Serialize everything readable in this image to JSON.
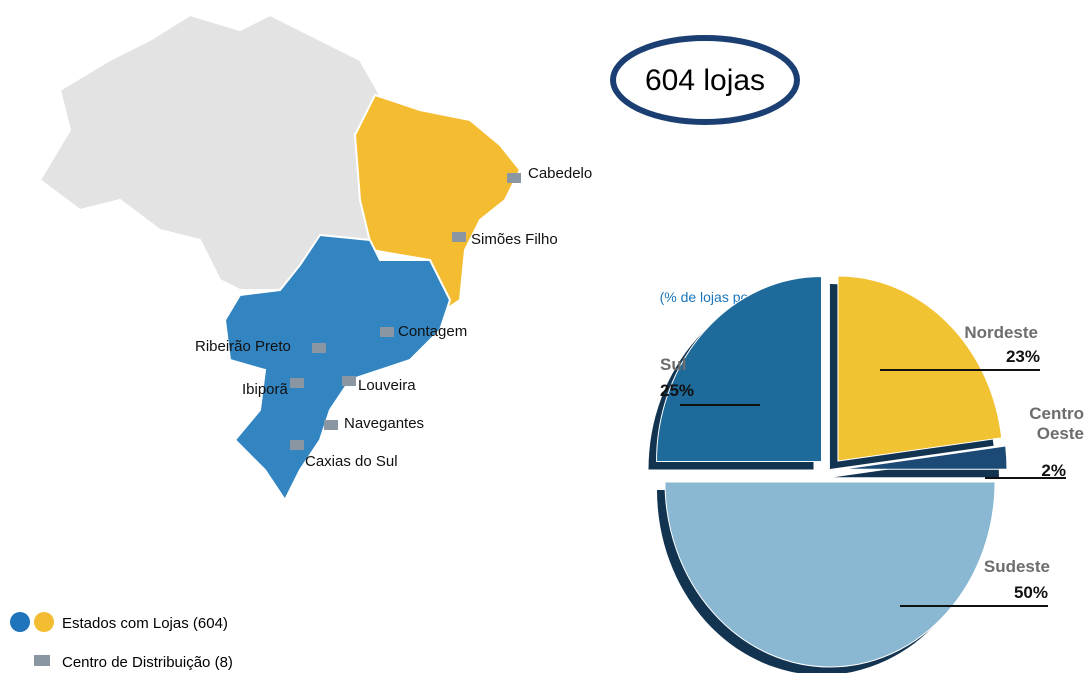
{
  "badge": "604 lojas",
  "map": {
    "cities": [
      "Cabedelo",
      "Simões Filho",
      "Contagem",
      "Ribeirão Preto",
      "Louveira",
      "Ibiporã",
      "Navegantes",
      "Caxias do Sul"
    ]
  },
  "legend": {
    "stores": "Estados com Lojas (604)",
    "centers": "Centro de Distribuição (8)"
  },
  "chart_data": {
    "type": "pie",
    "title": "(% de lojas por região)",
    "categories": [
      "Nordeste",
      "Centro Oeste",
      "Sudeste",
      "Sul"
    ],
    "values": [
      23,
      2,
      50,
      25
    ],
    "value_labels": [
      "23%",
      "2%",
      "50%",
      "25%"
    ],
    "colors": [
      "#f1c232",
      "#1b4a76",
      "#8ab7d2",
      "#1e6b9b"
    ]
  }
}
